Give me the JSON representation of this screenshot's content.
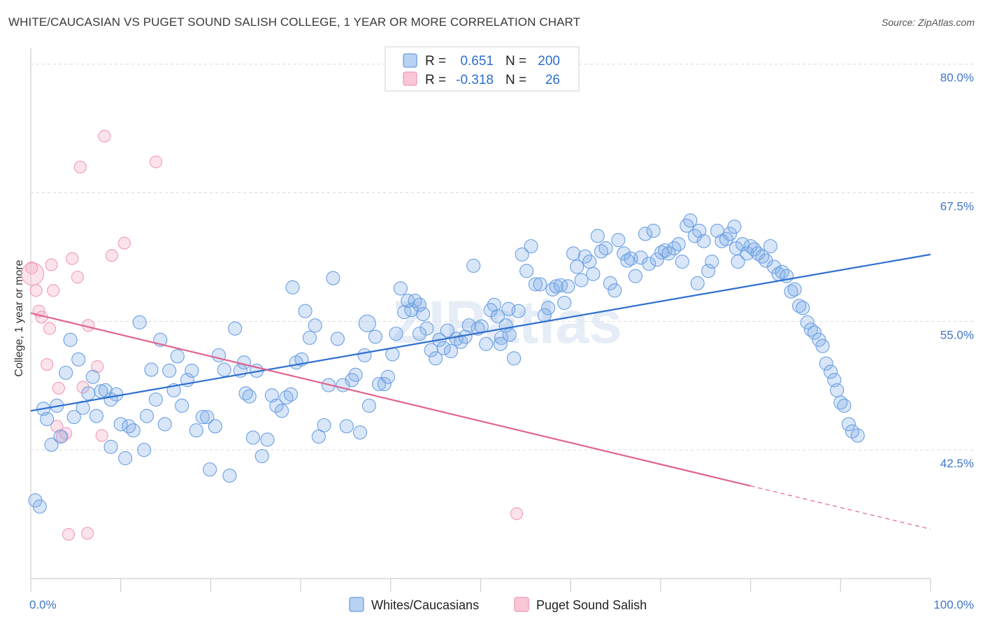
{
  "title": "WHITE/CAUCASIAN VS PUGET SOUND SALISH COLLEGE, 1 YEAR OR MORE CORRELATION CHART",
  "source": "Source: ZipAtlas.com",
  "watermark": "ZIPatlas",
  "colors": {
    "blue": "#6a9fe3",
    "blue_line": "#2e6fcf",
    "pink": "#f19ab6",
    "pink_line": "#e0648f",
    "tick_text": "#3f76c8",
    "grid": "#d9d9d9"
  },
  "legend": {
    "rows": [
      {
        "r_label": "R =",
        "r_value": "0.651",
        "n_label": "N =",
        "n_value": "200"
      },
      {
        "r_label": "R =",
        "r_value": "-0.318",
        "n_label": "N =",
        "n_value": "26"
      }
    ]
  },
  "bottom_legend": [
    "Whites/Caucasians",
    "Puget Sound Salish"
  ],
  "chart_data": {
    "type": "scatter",
    "title": "WHITE/CAUCASIAN VS PUGET SOUND SALISH COLLEGE, 1 YEAR OR MORE CORRELATION CHART",
    "xlabel": "",
    "ylabel": "College, 1 year or more",
    "x_ticks": [
      "0.0%",
      "100.0%"
    ],
    "y_ticks": [
      "42.5%",
      "55.0%",
      "67.5%",
      "80.0%"
    ],
    "xlim": [
      0,
      100
    ],
    "ylim": [
      30,
      81
    ],
    "grid": true,
    "legend_position": "top-center",
    "series": [
      {
        "name": "Whites/Caucasians",
        "r": 0.651,
        "n": 200,
        "trend": {
          "x0": 0,
          "y0": 46.3,
          "x1": 100,
          "y1": 61.5
        },
        "points": [
          [
            0.5,
            37.6
          ],
          [
            1.0,
            37.0
          ],
          [
            1.4,
            46.5
          ],
          [
            1.8,
            45.5
          ],
          [
            2.3,
            43.0
          ],
          [
            2.9,
            46.8
          ],
          [
            3.3,
            43.8
          ],
          [
            3.9,
            50.0
          ],
          [
            4.4,
            53.2
          ],
          [
            4.8,
            45.7
          ],
          [
            5.3,
            51.3
          ],
          [
            5.8,
            46.6
          ],
          [
            6.4,
            48.0
          ],
          [
            6.9,
            49.6
          ],
          [
            7.3,
            45.8
          ],
          [
            7.8,
            48.2
          ],
          [
            8.3,
            48.3
          ],
          [
            8.9,
            42.8
          ],
          [
            9.5,
            47.9
          ],
          [
            10.0,
            45.0
          ],
          [
            10.5,
            41.7
          ],
          [
            10.9,
            44.8
          ],
          [
            11.4,
            44.4
          ],
          [
            12.1,
            54.9
          ],
          [
            12.6,
            42.5
          ],
          [
            12.9,
            45.8
          ],
          [
            13.4,
            50.3
          ],
          [
            13.9,
            47.4
          ],
          [
            14.4,
            53.2
          ],
          [
            14.9,
            45.0
          ],
          [
            15.4,
            50.2
          ],
          [
            15.9,
            48.3
          ],
          [
            16.3,
            51.6
          ],
          [
            16.8,
            46.8
          ],
          [
            17.4,
            49.3
          ],
          [
            17.9,
            50.2
          ],
          [
            18.4,
            44.4
          ],
          [
            19.1,
            45.7
          ],
          [
            19.6,
            45.7
          ],
          [
            19.9,
            40.6
          ],
          [
            20.5,
            44.8
          ],
          [
            20.9,
            51.7
          ],
          [
            21.5,
            50.3
          ],
          [
            22.1,
            40.0
          ],
          [
            22.7,
            54.3
          ],
          [
            23.3,
            50.2
          ],
          [
            23.9,
            48.0
          ],
          [
            24.3,
            47.7
          ],
          [
            24.7,
            43.7
          ],
          [
            25.1,
            50.2
          ],
          [
            25.7,
            41.9
          ],
          [
            26.3,
            43.5
          ],
          [
            26.8,
            47.8
          ],
          [
            27.3,
            46.8
          ],
          [
            27.9,
            46.3
          ],
          [
            28.4,
            47.6
          ],
          [
            28.9,
            47.9
          ],
          [
            29.5,
            51.0
          ],
          [
            30.1,
            51.3
          ],
          [
            30.5,
            56.0
          ],
          [
            31.0,
            53.4
          ],
          [
            31.6,
            54.6
          ],
          [
            32.0,
            43.8
          ],
          [
            32.6,
            44.9
          ],
          [
            33.1,
            48.8
          ],
          [
            33.6,
            59.2
          ],
          [
            34.1,
            53.3
          ],
          [
            34.7,
            48.8
          ],
          [
            35.1,
            44.8
          ],
          [
            35.7,
            49.3
          ],
          [
            36.1,
            49.8
          ],
          [
            36.6,
            44.2
          ],
          [
            37.1,
            51.7
          ],
          [
            37.6,
            46.8
          ],
          [
            38.3,
            53.5
          ],
          [
            38.7,
            48.9
          ],
          [
            39.3,
            48.9
          ],
          [
            39.7,
            49.6
          ],
          [
            40.2,
            51.8
          ],
          [
            40.6,
            53.8
          ],
          [
            41.1,
            58.2
          ],
          [
            41.5,
            55.9
          ],
          [
            41.9,
            57.0
          ],
          [
            42.3,
            56.1
          ],
          [
            42.7,
            57.0
          ],
          [
            43.2,
            56.6
          ],
          [
            43.6,
            55.7
          ],
          [
            44.0,
            54.3
          ],
          [
            44.5,
            52.2
          ],
          [
            45.0,
            51.4
          ],
          [
            45.4,
            53.2
          ],
          [
            45.9,
            52.4
          ],
          [
            46.3,
            54.1
          ],
          [
            46.7,
            52.1
          ],
          [
            47.3,
            53.3
          ],
          [
            47.8,
            53.0
          ],
          [
            48.3,
            53.5
          ],
          [
            48.7,
            54.6
          ],
          [
            49.2,
            60.4
          ],
          [
            49.7,
            54.3
          ],
          [
            50.1,
            54.5
          ],
          [
            50.6,
            52.8
          ],
          [
            51.1,
            56.1
          ],
          [
            51.5,
            56.6
          ],
          [
            51.9,
            55.5
          ],
          [
            52.3,
            53.4
          ],
          [
            52.8,
            54.6
          ],
          [
            53.2,
            53.7
          ],
          [
            53.7,
            51.4
          ],
          [
            54.2,
            56.0
          ],
          [
            54.6,
            61.5
          ],
          [
            55.1,
            59.9
          ],
          [
            55.6,
            62.3
          ],
          [
            56.1,
            58.6
          ],
          [
            56.6,
            58.6
          ],
          [
            57.1,
            55.6
          ],
          [
            57.5,
            56.3
          ],
          [
            58.0,
            58.1
          ],
          [
            58.4,
            58.4
          ],
          [
            58.9,
            58.5
          ],
          [
            59.3,
            56.8
          ],
          [
            59.7,
            58.4
          ],
          [
            60.3,
            61.6
          ],
          [
            60.7,
            60.3
          ],
          [
            61.2,
            59.0
          ],
          [
            61.6,
            61.3
          ],
          [
            62.1,
            60.8
          ],
          [
            62.5,
            59.6
          ],
          [
            63.0,
            63.3
          ],
          [
            63.4,
            61.8
          ],
          [
            63.9,
            62.1
          ],
          [
            64.4,
            58.7
          ],
          [
            64.9,
            58.0
          ],
          [
            65.3,
            62.9
          ],
          [
            65.9,
            61.6
          ],
          [
            66.3,
            60.9
          ],
          [
            66.7,
            61.1
          ],
          [
            67.2,
            59.4
          ],
          [
            67.8,
            61.2
          ],
          [
            68.3,
            63.5
          ],
          [
            68.7,
            60.6
          ],
          [
            69.2,
            63.8
          ],
          [
            69.6,
            61.0
          ],
          [
            70.1,
            61.7
          ],
          [
            70.5,
            61.9
          ],
          [
            70.9,
            61.6
          ],
          [
            71.5,
            62.1
          ],
          [
            72.0,
            62.5
          ],
          [
            72.4,
            60.8
          ],
          [
            72.9,
            64.3
          ],
          [
            73.3,
            64.8
          ],
          [
            73.8,
            63.3
          ],
          [
            74.3,
            63.8
          ],
          [
            74.8,
            62.8
          ],
          [
            75.3,
            59.9
          ],
          [
            75.7,
            60.8
          ],
          [
            76.3,
            63.8
          ],
          [
            76.8,
            62.8
          ],
          [
            77.3,
            63.0
          ],
          [
            77.7,
            63.5
          ],
          [
            78.2,
            64.2
          ],
          [
            78.6,
            60.8
          ],
          [
            79.1,
            62.5
          ],
          [
            79.6,
            61.6
          ],
          [
            80.0,
            62.3
          ],
          [
            80.4,
            62.0
          ],
          [
            80.8,
            61.6
          ],
          [
            81.3,
            61.3
          ],
          [
            81.7,
            60.9
          ],
          [
            82.2,
            62.3
          ],
          [
            82.6,
            60.3
          ],
          [
            83.1,
            59.6
          ],
          [
            83.5,
            59.8
          ],
          [
            84.0,
            59.4
          ],
          [
            84.5,
            57.9
          ],
          [
            84.9,
            58.1
          ],
          [
            85.4,
            56.5
          ],
          [
            85.8,
            56.3
          ],
          [
            86.3,
            54.9
          ],
          [
            86.7,
            54.2
          ],
          [
            87.1,
            53.9
          ],
          [
            87.6,
            53.2
          ],
          [
            88.0,
            52.6
          ],
          [
            88.4,
            50.9
          ],
          [
            88.9,
            50.1
          ],
          [
            89.3,
            49.3
          ],
          [
            89.6,
            48.3
          ],
          [
            90.0,
            47.1
          ],
          [
            90.4,
            46.8
          ],
          [
            90.9,
            45.0
          ],
          [
            91.3,
            44.3
          ],
          [
            91.9,
            43.9
          ],
          [
            52.2,
            52.8
          ],
          [
            53.1,
            56.2
          ],
          [
            23.7,
            51.0
          ],
          [
            43.2,
            53.8
          ],
          [
            8.9,
            47.4
          ],
          [
            29.1,
            58.3
          ],
          [
            74.1,
            58.7
          ],
          [
            78.4,
            62.1
          ]
        ]
      },
      {
        "name": "Puget Sound Salish",
        "r": -0.318,
        "n": 26,
        "trend": {
          "x0": 0,
          "y0": 55.8,
          "x1": 80,
          "y1": 39.0
        },
        "trend_dashed": {
          "x0": 80,
          "y0": 39.0,
          "x1": 100,
          "y1": 34.8
        },
        "points": [
          [
            0.1,
            60.2
          ],
          [
            0.6,
            58.0
          ],
          [
            0.9,
            56.0
          ],
          [
            1.2,
            55.4
          ],
          [
            1.8,
            50.8
          ],
          [
            2.1,
            54.3
          ],
          [
            2.3,
            60.5
          ],
          [
            2.5,
            58.0
          ],
          [
            2.9,
            44.8
          ],
          [
            3.1,
            48.5
          ],
          [
            3.5,
            43.8
          ],
          [
            3.9,
            44.1
          ],
          [
            4.2,
            34.3
          ],
          [
            4.6,
            61.1
          ],
          [
            5.2,
            59.3
          ],
          [
            5.5,
            70.0
          ],
          [
            5.8,
            48.6
          ],
          [
            6.3,
            34.4
          ],
          [
            6.4,
            54.6
          ],
          [
            7.4,
            50.6
          ],
          [
            7.9,
            43.9
          ],
          [
            8.2,
            73.0
          ],
          [
            9.0,
            61.4
          ],
          [
            10.4,
            62.6
          ],
          [
            13.9,
            70.5
          ],
          [
            54.0,
            36.3
          ]
        ]
      }
    ]
  }
}
